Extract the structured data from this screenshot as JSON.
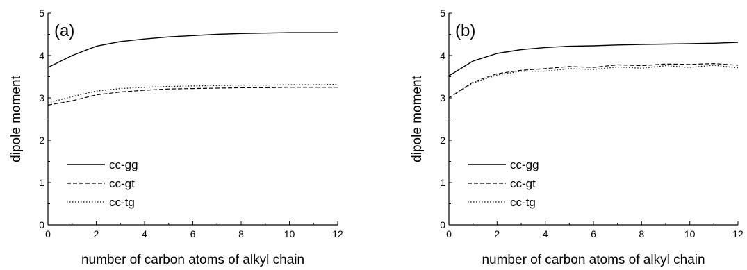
{
  "chart_data": [
    {
      "type": "line",
      "panel_label": "(a)",
      "xlabel": "number of carbon atoms of alkyl chain",
      "ylabel": "dipole moment",
      "xlim": [
        0,
        12
      ],
      "ylim": [
        0,
        5
      ],
      "xticks": [
        "0",
        "2",
        "4",
        "6",
        "8",
        "10",
        "12"
      ],
      "yticks": [
        "0",
        "1",
        "2",
        "3",
        "4",
        "5"
      ],
      "grid": false,
      "legend_position": "bottom-left",
      "x": [
        0,
        1,
        2,
        3,
        4,
        5,
        6,
        7,
        8,
        9,
        10,
        11,
        12
      ],
      "series": [
        {
          "name": "cc-gg",
          "style": "solid",
          "values": [
            3.72,
            4.0,
            4.22,
            4.33,
            4.39,
            4.44,
            4.47,
            4.5,
            4.52,
            4.53,
            4.54,
            4.54,
            4.54
          ]
        },
        {
          "name": "cc-gt",
          "style": "dashed",
          "values": [
            2.83,
            2.93,
            3.07,
            3.14,
            3.18,
            3.21,
            3.22,
            3.23,
            3.24,
            3.24,
            3.25,
            3.25,
            3.25
          ]
        },
        {
          "name": "cc-tg",
          "style": "dotted",
          "values": [
            2.88,
            3.03,
            3.16,
            3.22,
            3.25,
            3.27,
            3.28,
            3.29,
            3.3,
            3.3,
            3.31,
            3.31,
            3.32
          ]
        }
      ]
    },
    {
      "type": "line",
      "panel_label": "(b)",
      "xlabel": "number of carbon atoms of alkyl chain",
      "ylabel": "dipole moment",
      "xlim": [
        0,
        12
      ],
      "ylim": [
        0,
        5
      ],
      "xticks": [
        "0",
        "2",
        "4",
        "6",
        "8",
        "10",
        "12"
      ],
      "yticks": [
        "0",
        "1",
        "2",
        "3",
        "4",
        "5"
      ],
      "grid": false,
      "legend_position": "bottom-left",
      "x": [
        0,
        1,
        2,
        3,
        4,
        5,
        6,
        7,
        8,
        9,
        10,
        11,
        12
      ],
      "series": [
        {
          "name": "cc-gg",
          "style": "solid",
          "values": [
            3.52,
            3.87,
            4.05,
            4.14,
            4.19,
            4.22,
            4.23,
            4.25,
            4.26,
            4.27,
            4.28,
            4.29,
            4.31
          ]
        },
        {
          "name": "cc-gt",
          "style": "dashed",
          "values": [
            3.0,
            3.37,
            3.57,
            3.65,
            3.69,
            3.74,
            3.72,
            3.78,
            3.76,
            3.8,
            3.79,
            3.81,
            3.77
          ]
        },
        {
          "name": "cc-tg",
          "style": "dotted",
          "values": [
            3.0,
            3.35,
            3.54,
            3.63,
            3.63,
            3.69,
            3.67,
            3.73,
            3.7,
            3.76,
            3.72,
            3.77,
            3.71
          ]
        }
      ]
    }
  ]
}
